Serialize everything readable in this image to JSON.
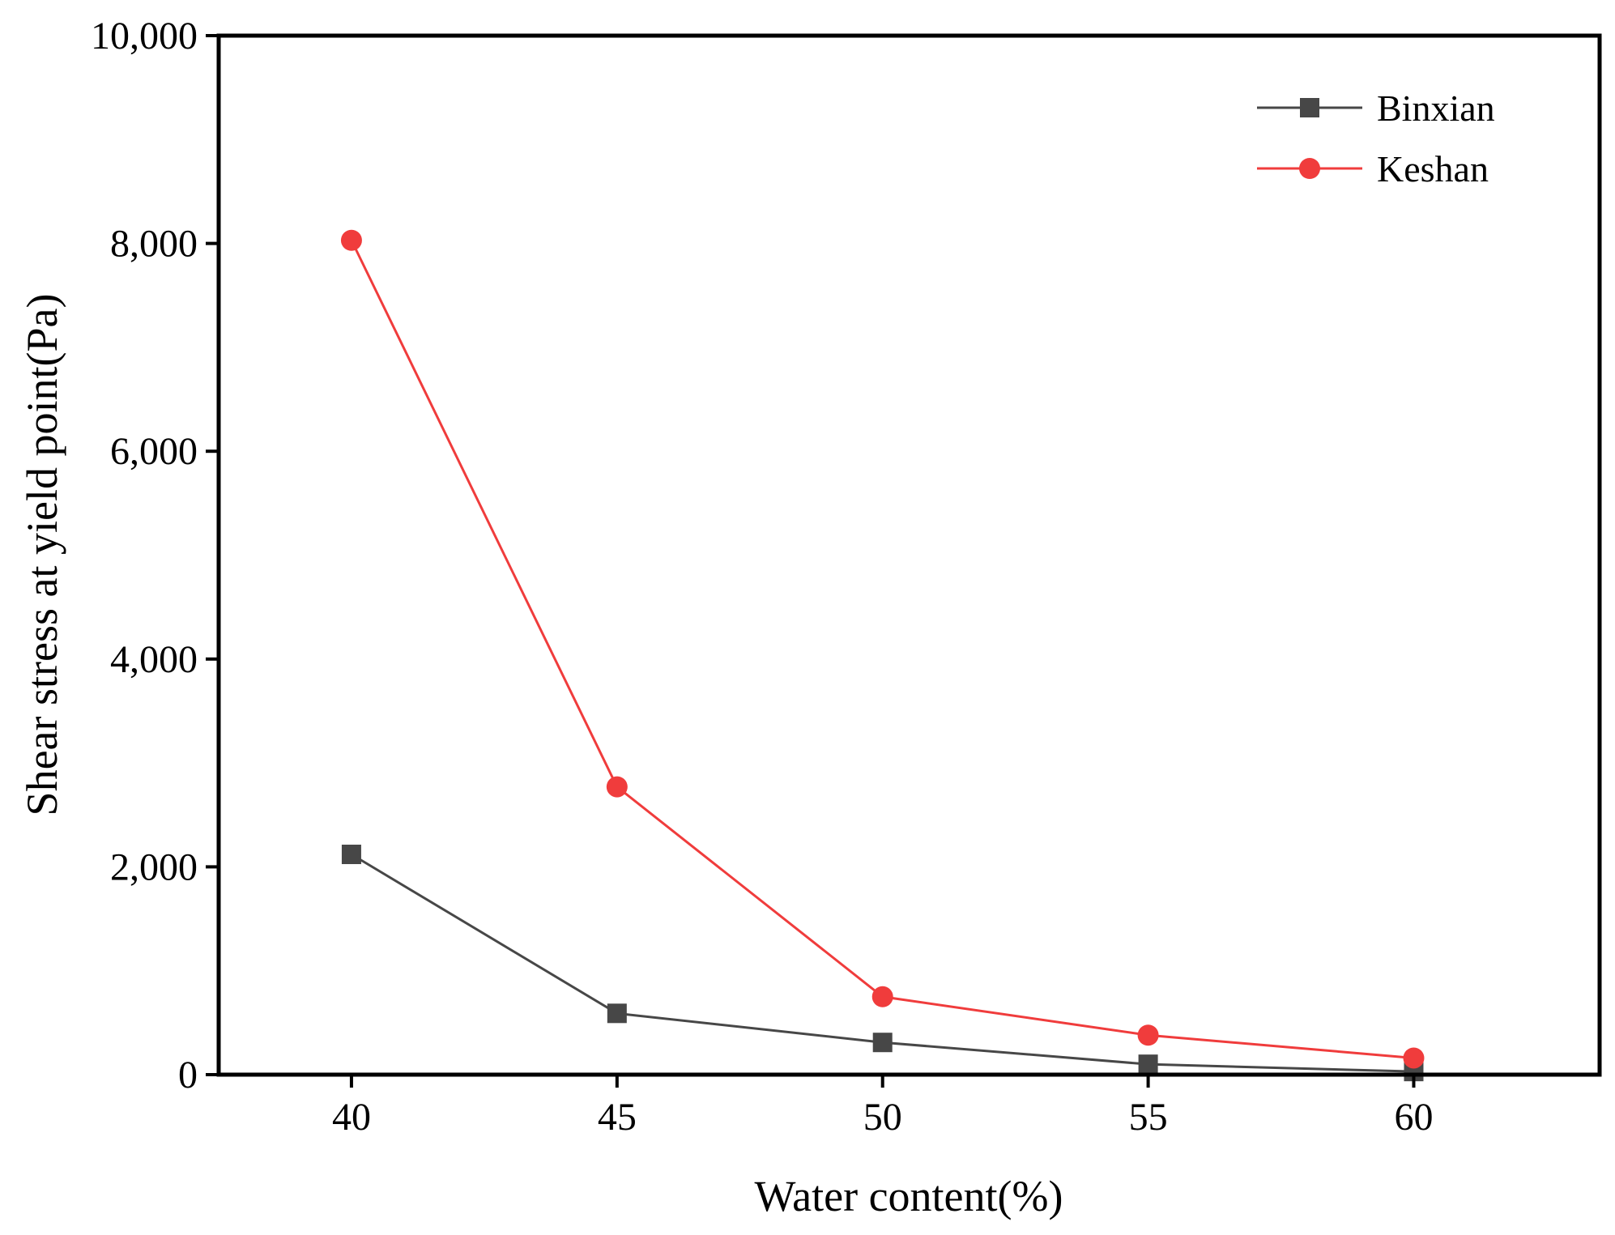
{
  "chart_data": {
    "type": "line",
    "xlabel": "Water content(%)",
    "ylabel": "Shear stress at yield point(Pa)",
    "x": [
      40,
      45,
      50,
      55,
      60
    ],
    "xlim": [
      37.5,
      63.5
    ],
    "ylim": [
      0,
      10000
    ],
    "x_ticks": [
      40,
      45,
      50,
      55,
      60
    ],
    "y_ticks": [
      0,
      2000,
      4000,
      6000,
      8000,
      10000
    ],
    "x_tick_labels": [
      "40",
      "45",
      "50",
      "55",
      "60"
    ],
    "y_tick_labels": [
      "0",
      "2,000",
      "4,000",
      "6,000",
      "8,000",
      "10,000"
    ],
    "grid": false,
    "legend_position": "top-right",
    "series": [
      {
        "name": "Binxian",
        "marker": "square",
        "color": "#474747",
        "values": [
          2120,
          590,
          310,
          100,
          30
        ]
      },
      {
        "name": "Keshan",
        "marker": "circle",
        "color": "#f03c3c",
        "values": [
          8030,
          2770,
          750,
          380,
          160
        ]
      }
    ]
  }
}
